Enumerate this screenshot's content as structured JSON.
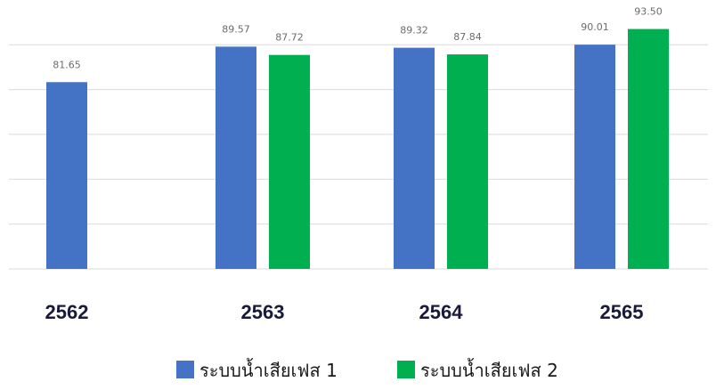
{
  "chart_data": {
    "type": "bar",
    "title": "",
    "xlabel": "",
    "ylabel": "",
    "categories": [
      "2562",
      "2563",
      "2564",
      "2565"
    ],
    "series": [
      {
        "name": "ระบบน้ำเสียเฟส 1",
        "color": "#4472c4",
        "values": [
          81.65,
          89.57,
          89.32,
          90.01
        ],
        "labels": [
          "81.65",
          "89.57",
          "89.32",
          "90.01"
        ]
      },
      {
        "name": "ระบบน้ำเสียเฟส 2",
        "color": "#00b050",
        "values": [
          null,
          87.72,
          87.84,
          93.5
        ],
        "labels": [
          "",
          "87.72",
          "87.84",
          "93.50"
        ]
      }
    ],
    "ylim": [
      40,
      96
    ],
    "gridlines": [
      40,
      50,
      60,
      70,
      80,
      90
    ],
    "grid": true,
    "legend_position": "bottom-center"
  }
}
